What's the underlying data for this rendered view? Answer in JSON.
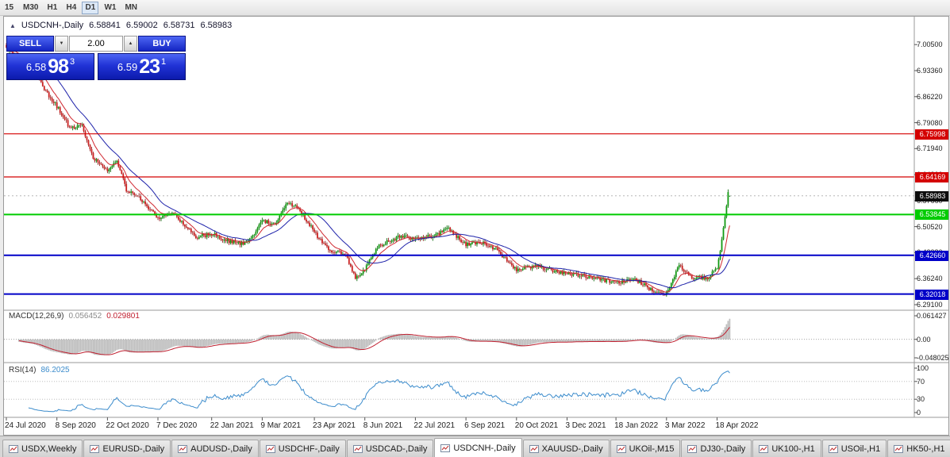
{
  "toolbar": {
    "timeframes": [
      {
        "label": "15",
        "active": false
      },
      {
        "label": "M30",
        "active": false
      },
      {
        "label": "H1",
        "active": false
      },
      {
        "label": "H4",
        "active": false
      },
      {
        "label": "D1",
        "active": true
      },
      {
        "label": "W1",
        "active": false
      },
      {
        "label": "MN",
        "active": false
      }
    ]
  },
  "chart_header": {
    "collapse_icon": "▲",
    "symbol": "USDCNH-,Daily",
    "open": "6.58841",
    "high": "6.59002",
    "low": "6.58731",
    "close": "6.58983"
  },
  "trade_panel": {
    "sell_label": "SELL",
    "buy_label": "BUY",
    "volume": "2.00",
    "volume_down_icon": "▼",
    "volume_up_icon": "▲",
    "sell_price_main": "6.58",
    "sell_price_big": "98",
    "sell_price_sup": "3",
    "buy_price_main": "6.59",
    "buy_price_big": "23",
    "buy_price_sup": "1"
  },
  "tab_bar": {
    "tabs": [
      {
        "label": "USDX,Weekly",
        "active": false
      },
      {
        "label": "EURUSD-,Daily",
        "active": false
      },
      {
        "label": "AUDUSD-,Daily",
        "active": false
      },
      {
        "label": "USDCHF-,Daily",
        "active": false
      },
      {
        "label": "USDCAD-,Daily",
        "active": false
      },
      {
        "label": "USDCNH-,Daily",
        "active": true
      },
      {
        "label": "XAUUSD-,Daily",
        "active": false
      },
      {
        "label": "UKOil-,M15",
        "active": false
      },
      {
        "label": "DJ30-,Daily",
        "active": false
      },
      {
        "label": "UK100-,H1",
        "active": false
      },
      {
        "label": "USOil-,H1",
        "active": false
      },
      {
        "label": "HK50-,H1",
        "active": false
      }
    ]
  },
  "chart_data": {
    "type": "candlestick",
    "symbol": "USDCNH-",
    "timeframe": "Daily",
    "ohlc_current": {
      "open": 6.58841,
      "high": 6.59002,
      "low": 6.58731,
      "close": 6.58983
    },
    "current_price_label": "6.58983",
    "y_range": [
      6.28,
      7.06
    ],
    "price_axis": [
      {
        "label": "7.00500",
        "value": 7.005
      },
      {
        "label": "6.93360",
        "value": 6.9336
      },
      {
        "label": "6.86220",
        "value": 6.8622
      },
      {
        "label": "6.79080",
        "value": 6.7908
      },
      {
        "label": "6.71940",
        "value": 6.7194
      },
      {
        "label": "6.64800",
        "value": 6.648
      },
      {
        "label": "6.57660",
        "value": 6.5766
      },
      {
        "label": "6.50520",
        "value": 6.5052
      },
      {
        "label": "6.43380",
        "value": 6.4338
      },
      {
        "label": "6.36240",
        "value": 6.3624
      },
      {
        "label": "6.29100",
        "value": 6.291
      }
    ],
    "levels": [
      {
        "price": 6.75998,
        "label": "6.75998",
        "color": "#d40000",
        "width": 1.2
      },
      {
        "price": 6.64169,
        "label": "6.64169",
        "color": "#d40000",
        "width": 1.2
      },
      {
        "price": 6.53845,
        "label": "6.53845",
        "color": "#00cc00",
        "width": 2
      },
      {
        "price": 6.4266,
        "label": "6.42660",
        "color": "#0000c8",
        "width": 2
      },
      {
        "price": 6.32018,
        "label": "6.32018",
        "color": "#0000c8",
        "width": 2
      }
    ],
    "date_labels": [
      {
        "label": "24 Jul 2020",
        "index": 0
      },
      {
        "label": "8 Sep 2020",
        "index": 32
      },
      {
        "label": "22 Oct 2020",
        "index": 64
      },
      {
        "label": "7 Dec 2020",
        "index": 96
      },
      {
        "label": "22 Jan 2021",
        "index": 130
      },
      {
        "label": "9 Mar 2021",
        "index": 162
      },
      {
        "label": "23 Apr 2021",
        "index": 195
      },
      {
        "label": "8 Jun 2021",
        "index": 227
      },
      {
        "label": "22 Jul 2021",
        "index": 259
      },
      {
        "label": "6 Sep 2021",
        "index": 291
      },
      {
        "label": "20 Oct 2021",
        "index": 323
      },
      {
        "label": "3 Dec 2021",
        "index": 355
      },
      {
        "label": "18 Jan 2022",
        "index": 386
      },
      {
        "label": "3 Mar 2022",
        "index": 418
      },
      {
        "label": "18 Apr 2022",
        "index": 450
      }
    ],
    "close_waypoints": [
      [
        0,
        6.995
      ],
      [
        6,
        6.972
      ],
      [
        15,
        6.952
      ],
      [
        25,
        6.878
      ],
      [
        32,
        6.835
      ],
      [
        40,
        6.778
      ],
      [
        48,
        6.782
      ],
      [
        55,
        6.695
      ],
      [
        64,
        6.655
      ],
      [
        70,
        6.688
      ],
      [
        76,
        6.607
      ],
      [
        85,
        6.582
      ],
      [
        96,
        6.527
      ],
      [
        105,
        6.541
      ],
      [
        114,
        6.506
      ],
      [
        120,
        6.476
      ],
      [
        130,
        6.486
      ],
      [
        140,
        6.466
      ],
      [
        150,
        6.456
      ],
      [
        157,
        6.487
      ],
      [
        162,
        6.524
      ],
      [
        170,
        6.509
      ],
      [
        178,
        6.57
      ],
      [
        185,
        6.556
      ],
      [
        195,
        6.49
      ],
      [
        205,
        6.436
      ],
      [
        215,
        6.43
      ],
      [
        221,
        6.362
      ],
      [
        227,
        6.386
      ],
      [
        235,
        6.451
      ],
      [
        243,
        6.466
      ],
      [
        250,
        6.479
      ],
      [
        259,
        6.47
      ],
      [
        270,
        6.48
      ],
      [
        280,
        6.499
      ],
      [
        291,
        6.456
      ],
      [
        300,
        6.464
      ],
      [
        309,
        6.446
      ],
      [
        323,
        6.386
      ],
      [
        335,
        6.399
      ],
      [
        345,
        6.386
      ],
      [
        355,
        6.376
      ],
      [
        365,
        6.371
      ],
      [
        375,
        6.361
      ],
      [
        386,
        6.351
      ],
      [
        399,
        6.359
      ],
      [
        409,
        6.331
      ],
      [
        418,
        6.321
      ],
      [
        426,
        6.398
      ],
      [
        434,
        6.366
      ],
      [
        444,
        6.364
      ],
      [
        450,
        6.393
      ],
      [
        452,
        6.438
      ],
      [
        454,
        6.502
      ],
      [
        456,
        6.562
      ],
      [
        457,
        6.6
      ],
      [
        458,
        6.59
      ]
    ],
    "candle_colors": {
      "up": "#119a11",
      "down": "#cc2020",
      "up_wick": "#0b6b0b",
      "down_wick": "#8f1c1c"
    },
    "ma_colors": {
      "fast": "#d02830",
      "slow": "#1e22aa"
    },
    "indicator_colors": {
      "macd_hist": "#bdbdbd",
      "macd_signal": "#c02030",
      "rsi": "#3c8ccc"
    },
    "indicators": {
      "macd": {
        "title": "MACD(12,26,9)",
        "main_value": "0.056452",
        "signal_value": "0.029801",
        "params": [
          12,
          26,
          9
        ],
        "axis_labels": [
          {
            "label": "0.061427",
            "value": 0.061427
          },
          {
            "label": "0.00",
            "value": 0
          },
          {
            "label": "-0.048025",
            "value": -0.048025
          }
        ]
      },
      "rsi": {
        "title": "RSI(14)",
        "value": "86.2025",
        "period": 14,
        "levels": [
          70,
          30
        ],
        "axis_labels": [
          {
            "label": "100",
            "value": 100
          },
          {
            "label": "70",
            "value": 70
          },
          {
            "label": "30",
            "value": 30
          },
          {
            "label": "0",
            "value": 0
          }
        ]
      }
    }
  }
}
